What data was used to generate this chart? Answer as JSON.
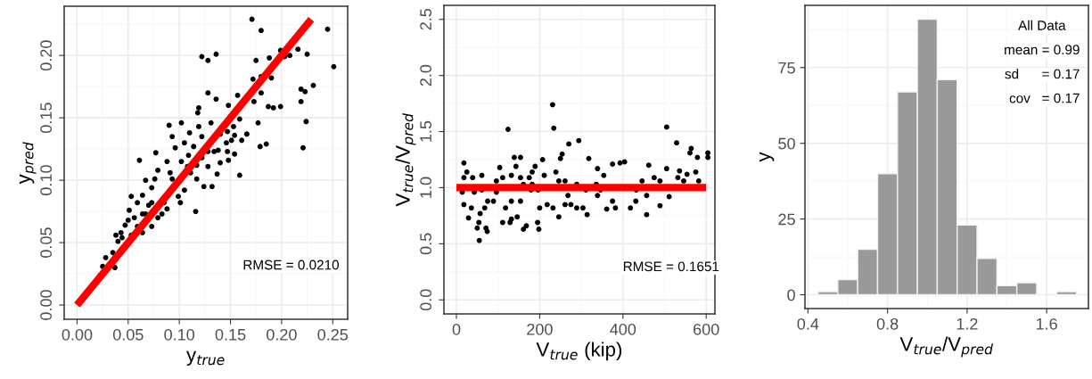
{
  "chart_data": [
    {
      "type": "scatter",
      "xlabel": "y$_{true}$",
      "ylabel": "y$_{pred}$",
      "annotations": [
        "RMSE = 0.0210"
      ],
      "grid": true,
      "xlim": [
        -0.0126,
        0.2646
      ],
      "ylim": [
        -0.0114,
        0.2394
      ],
      "xticks": [
        {
          "value": 0,
          "label": "0.00"
        },
        {
          "value": 0.05,
          "label": "0.05"
        },
        {
          "value": 0.1,
          "label": "0.10"
        },
        {
          "value": 0.15,
          "label": "0.15"
        },
        {
          "value": 0.2,
          "label": "0.20"
        },
        {
          "value": 0.25,
          "label": "0.25"
        }
      ],
      "yticks": [
        {
          "value": 0,
          "label": "0.00"
        },
        {
          "value": 0.05,
          "label": "0.05"
        },
        {
          "value": 0.1,
          "label": "0.10"
        },
        {
          "value": 0.15,
          "label": "0.15"
        },
        {
          "value": 0.2,
          "label": "0.20"
        }
      ],
      "series": [
        {
          "type": "scatter",
          "marker": "circle",
          "color": "#000000",
          "x": [
            0.171,
            0.18,
            0.245,
            0.251,
            0.225,
            0.216,
            0.199,
            0.208,
            0.203,
            0.188,
            0.175,
            0.122,
            0.128,
            0.136,
            0.231,
            0.219,
            0.223,
            0.219,
            0.224,
            0.221,
            0.199,
            0.192,
            0.187,
            0.19,
            0.18,
            0.172,
            0.18,
            0.173,
            0.157,
            0.148,
            0.128,
            0.136,
            0.119,
            0.118,
            0.102,
            0.09,
            0.093,
            0.11,
            0.119,
            0.131,
            0.147,
            0.153,
            0.159,
            0.166,
            0.177,
            0.179,
            0.185,
            0.151,
            0.161,
            0.154,
            0.147,
            0.138,
            0.14,
            0.148,
            0.137,
            0.159,
            0.132,
            0.124,
            0.116,
            0.101,
            0.077,
            0.061,
            0.067,
            0.096,
            0.102,
            0.114,
            0.122,
            0.105,
            0.088,
            0.091,
            0.079,
            0.073,
            0.064,
            0.053,
            0.059,
            0.051,
            0.056,
            0.064,
            0.07,
            0.111,
            0.117,
            0.122,
            0.128,
            0.088,
            0.079,
            0.073,
            0.064,
            0.047,
            0.043,
            0.038,
            0.04,
            0.044,
            0.035,
            0.037,
            0.028,
            0.025,
            0.05,
            0.085,
            0.093,
            0.108,
            0.076,
            0.083,
            0.109,
            0.14,
            0.154,
            0.146,
            0.128,
            0.134,
            0.117,
            0.105,
            0.099,
            0.073,
            0.067,
            0.059,
            0.053
          ],
          "values": [
            0.229,
            0.22,
            0.221,
            0.191,
            0.201,
            0.205,
            0.204,
            0.2,
            0.199,
            0.198,
            0.196,
            0.199,
            0.196,
            0.201,
            0.176,
            0.173,
            0.171,
            0.163,
            0.147,
            0.126,
            0.159,
            0.158,
            0.159,
            0.182,
            0.183,
            0.181,
            0.17,
            0.163,
            0.168,
            0.16,
            0.17,
            0.165,
            0.158,
            0.154,
            0.146,
            0.144,
            0.135,
            0.138,
            0.143,
            0.146,
            0.139,
            0.143,
            0.149,
            0.137,
            0.146,
            0.127,
            0.129,
            0.132,
            0.132,
            0.121,
            0.123,
            0.124,
            0.114,
            0.116,
            0.105,
            0.104,
            0.095,
            0.095,
            0.075,
            0.082,
            0.122,
            0.116,
            0.1,
            0.126,
            0.115,
            0.127,
            0.135,
            0.13,
            0.115,
            0.106,
            0.108,
            0.094,
            0.088,
            0.087,
            0.082,
            0.076,
            0.07,
            0.073,
            0.08,
            0.106,
            0.112,
            0.118,
            0.123,
            0.077,
            0.07,
            0.063,
            0.058,
            0.064,
            0.058,
            0.056,
            0.051,
            0.054,
            0.042,
            0.03,
            0.038,
            0.031,
            0.068,
            0.082,
            0.101,
            0.111,
            0.101,
            0.073,
            0.12,
            0.137,
            0.136,
            0.13,
            0.111,
            0.123,
            0.101,
            0.092,
            0.087,
            0.082,
            0.073,
            0.063,
            0.056
          ]
        },
        {
          "type": "line",
          "marker": "none",
          "color": "#ff0000",
          "x": [
            0,
            0.229
          ],
          "values": [
            0,
            0.229
          ]
        }
      ]
    },
    {
      "type": "scatter",
      "xlabel": "V$_{true}$ (kip)",
      "ylabel": "V$_{true}$/V$_{pred}$",
      "annotations": [
        "RMSE = 0.1651"
      ],
      "grid": true,
      "xlim": [
        -30,
        621
      ],
      "ylim": [
        -0.125,
        2.625
      ],
      "xticks": [
        0,
        200,
        400,
        600
      ],
      "yticks": [
        {
          "value": 0,
          "label": "0.0"
        },
        {
          "value": 0.5,
          "label": "0.5"
        },
        {
          "value": 1,
          "label": "1.0"
        },
        {
          "value": 1.5,
          "label": "1.5"
        },
        {
          "value": 2,
          "label": "2.0"
        },
        {
          "value": 2.5,
          "label": "2.5"
        }
      ],
      "series": [
        {
          "type": "scatter",
          "marker": "circle",
          "color": "#000000",
          "x": [
            231,
            234,
            124,
            294,
            270,
            505,
            529,
            564,
            579,
            604,
            604,
            561,
            582,
            536,
            511,
            489,
            457,
            431,
            457,
            462,
            475,
            489,
            505,
            532,
            554,
            404,
            393,
            375,
            354,
            339,
            361,
            382,
            339,
            318,
            336,
            314,
            304,
            289,
            275,
            261,
            254,
            250,
            239,
            246,
            246,
            232,
            218,
            207,
            189,
            182,
            175,
            196,
            200,
            198,
            195,
            168,
            161,
            146,
            132,
            129,
            111,
            118,
            139,
            154,
            143,
            132,
            161,
            179,
            154,
            132,
            111,
            96,
            96,
            75,
            68,
            57,
            54,
            50,
            55,
            74,
            71,
            29,
            18,
            14,
            18,
            18,
            25,
            39,
            61,
            61,
            43,
            36,
            89,
            104,
            268,
            289,
            311,
            346,
            375,
            418,
            432,
            446,
            546,
            575,
            261,
            211,
            182,
            154
          ],
          "values": [
            1.74,
            1.53,
            1.52,
            1.42,
            1.39,
            1.54,
            1.4,
            1.35,
            1.27,
            1.31,
            1.27,
            1.31,
            1.06,
            1.15,
            0.92,
            0.84,
            0.76,
            0.88,
            0.93,
            1.2,
            1.09,
            1.06,
            1.17,
            1.09,
            1.12,
            1.23,
            1.22,
            1.21,
            1.11,
            0.93,
            0.81,
            0.82,
            1.17,
            1.26,
            1.03,
            0.76,
            0.82,
            0.82,
            0.85,
            0.85,
            1.3,
            1.26,
            1.14,
            1.06,
            0.74,
            0.82,
            0.85,
            1.25,
            1.19,
            1.14,
            1.09,
            0.98,
            0.82,
            0.63,
            0.69,
            0.66,
            0.63,
            0.74,
            0.72,
            0.69,
            0.69,
            0.82,
            1.27,
            1.27,
            1.19,
            1.11,
            1.03,
            0.98,
            0.88,
            0.88,
            1.09,
            1.06,
            0.96,
            0.88,
            0.82,
            0.77,
            0.69,
            0.64,
            0.53,
            0.61,
            0.64,
            0.73,
            0.85,
            0.96,
            1.09,
            1.22,
            1.14,
            1.09,
            1.11,
            0.98,
            0.96,
            0.82,
            0.88,
            1.18,
            0.93,
            1.03,
            0.98,
            0.98,
            0.88,
            0.82,
            0.98,
            1.06,
            1.06,
            1.14,
            1.06,
            1.11,
            1.03,
            1.09
          ]
        },
        {
          "type": "line",
          "marker": "none",
          "color": "#ff0000",
          "x": [
            0,
            600
          ],
          "values": [
            1,
            1
          ]
        }
      ]
    },
    {
      "type": "histogram",
      "xlabel": "V$_{true}$/V$_{pred}$",
      "ylabel": "y",
      "annotations": [
        "All Data",
        "mean = 0.99",
        "sd      = 0.17",
        "cov   = 0.17"
      ],
      "grid": true,
      "xlim": [
        0.385,
        1.81
      ],
      "ylim": [
        -4.55,
        95.55
      ],
      "xticks": [
        0.4,
        0.8,
        1.2,
        1.6
      ],
      "yticks": [
        0,
        25,
        50,
        75
      ],
      "bins": [
        0.45,
        0.55,
        0.65,
        0.75,
        0.85,
        0.95,
        1.05,
        1.15,
        1.25,
        1.35,
        1.45,
        1.55,
        1.65,
        1.75
      ],
      "values": [
        1,
        5,
        15,
        40,
        67,
        91,
        71,
        23,
        12,
        3,
        4,
        0,
        1
      ],
      "color": "#999999"
    }
  ]
}
